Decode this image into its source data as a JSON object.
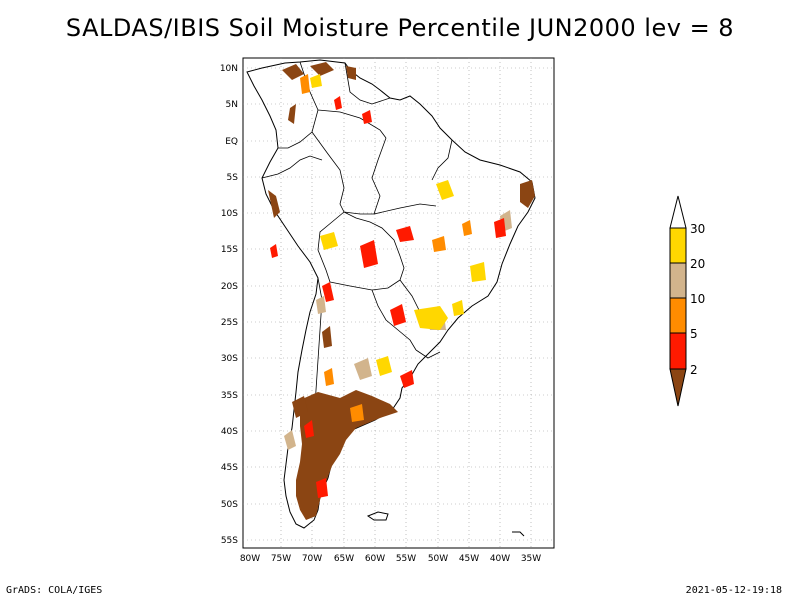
{
  "title": "SALDAS/IBIS Soil Moisture Percentile JUN2000 lev = 8",
  "footer": {
    "left": "GrADS: COLA/IGES",
    "right": "2021-05-12-19:18"
  },
  "map": {
    "lat_labels": [
      "10N",
      "5N",
      "EQ",
      "5S",
      "10S",
      "15S",
      "20S",
      "25S",
      "30S",
      "35S",
      "40S",
      "45S",
      "50S",
      "55S"
    ],
    "lon_labels": [
      "80W",
      "75W",
      "70W",
      "65W",
      "60W",
      "55W",
      "50W",
      "45W",
      "40W",
      "35W"
    ],
    "colors": {
      "lt2": "#8B4513",
      "2to5": "#FF1A00",
      "5to10": "#FF8C00",
      "10to20": "#D2B48C",
      "20to30": "#FFD700",
      "gt30": "#FFFFFF",
      "land_outline": "#000000",
      "grid": "#9a9a9a"
    }
  },
  "legend": {
    "labels": [
      "30",
      "20",
      "10",
      "5",
      "2"
    ]
  }
}
